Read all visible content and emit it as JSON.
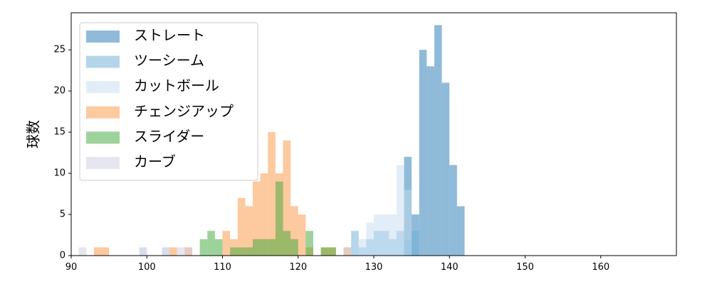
{
  "chart_data": {
    "type": "histogram",
    "ylabel": "球数",
    "bins": [
      91,
      92,
      93,
      94,
      95,
      96,
      97,
      98,
      99,
      100,
      101,
      102,
      103,
      104,
      105,
      106,
      107,
      108,
      109,
      110,
      111,
      112,
      113,
      114,
      115,
      116,
      117,
      118,
      119,
      120,
      121,
      122,
      123,
      124,
      125,
      126,
      127,
      128,
      129,
      130,
      131,
      132,
      133,
      134,
      135,
      136,
      137,
      138,
      139,
      140,
      141,
      142
    ],
    "series": [
      {
        "name": "ストレート",
        "color": "#1f77b4",
        "values": [
          0,
          0,
          0,
          0,
          0,
          0,
          0,
          0,
          0,
          0,
          0,
          0,
          0,
          0,
          0,
          0,
          0,
          0,
          0,
          0,
          0,
          0,
          0,
          0,
          0,
          0,
          0,
          0,
          0,
          0,
          0,
          0,
          0,
          0,
          0,
          0,
          0,
          0,
          0,
          0,
          0,
          0,
          0,
          12,
          5,
          25,
          23,
          28,
          21,
          11,
          6
        ]
      },
      {
        "name": "ツーシーム",
        "color": "#6baed6",
        "values": [
          0,
          0,
          0,
          0,
          0,
          0,
          0,
          0,
          0,
          0,
          0,
          0,
          0,
          0,
          0,
          0,
          0,
          0,
          0,
          0,
          0,
          0,
          0,
          0,
          0,
          0,
          0,
          0,
          0,
          0,
          0,
          0,
          0,
          0,
          0,
          0,
          3,
          1,
          2,
          3,
          3,
          2,
          3,
          2,
          3,
          0,
          0,
          0,
          0,
          0,
          0
        ]
      },
      {
        "name": "カットボール",
        "color": "#c6dbef",
        "values": [
          0,
          0,
          0,
          0,
          0,
          0,
          0,
          0,
          1,
          0,
          0,
          1,
          0,
          0,
          0,
          0,
          0,
          0,
          0,
          0,
          0,
          0,
          0,
          0,
          0,
          0,
          0,
          0,
          0,
          0,
          0,
          0,
          0,
          0,
          0,
          0,
          0,
          2,
          4,
          5,
          5,
          5,
          11,
          8,
          0,
          0,
          0,
          0,
          0,
          0,
          0
        ]
      },
      {
        "name": "チェンジアップ",
        "color": "#fb933f",
        "values": [
          0,
          0,
          1,
          1,
          0,
          0,
          0,
          0,
          0,
          0,
          0,
          0,
          1,
          0,
          1,
          0,
          0,
          0,
          0,
          3,
          2,
          7,
          6,
          9,
          10,
          15,
          10,
          14,
          6,
          5,
          1,
          0,
          1,
          1,
          0,
          1,
          0,
          0,
          0,
          0,
          0,
          0,
          0,
          0,
          0,
          0,
          0,
          0,
          0,
          0,
          0
        ]
      },
      {
        "name": "スライダー",
        "color": "#3ba735",
        "values": [
          0,
          0,
          0,
          0,
          0,
          0,
          0,
          0,
          0,
          0,
          0,
          0,
          0,
          0,
          0,
          0,
          2,
          3,
          2,
          0,
          1,
          1,
          1,
          2,
          2,
          2,
          9,
          3,
          2,
          0,
          3,
          0,
          1,
          1,
          0,
          0,
          0,
          0,
          0,
          0,
          0,
          0,
          0,
          0,
          0,
          0,
          0,
          0,
          0,
          0,
          0
        ]
      },
      {
        "name": "カーブ",
        "color": "#cdcde1",
        "values": [
          1,
          0,
          0,
          0,
          0,
          0,
          0,
          0,
          1,
          0,
          0,
          1,
          0,
          1,
          1,
          0,
          0,
          0,
          0,
          0,
          0,
          0,
          0,
          0,
          0,
          0,
          0,
          0,
          0,
          0,
          0,
          0,
          0,
          0,
          0,
          1,
          0,
          0,
          0,
          0,
          0,
          0,
          0,
          0,
          0,
          0,
          0,
          0,
          0,
          0,
          0
        ]
      }
    ],
    "alpha": 0.5,
    "xlim": [
      90,
      170
    ],
    "xticks": [
      90,
      100,
      110,
      120,
      130,
      140,
      150,
      160
    ],
    "ylim": [
      0,
      29.5
    ],
    "yticks": [
      0,
      5,
      10,
      15,
      20,
      25
    ],
    "legend": "upper left"
  }
}
